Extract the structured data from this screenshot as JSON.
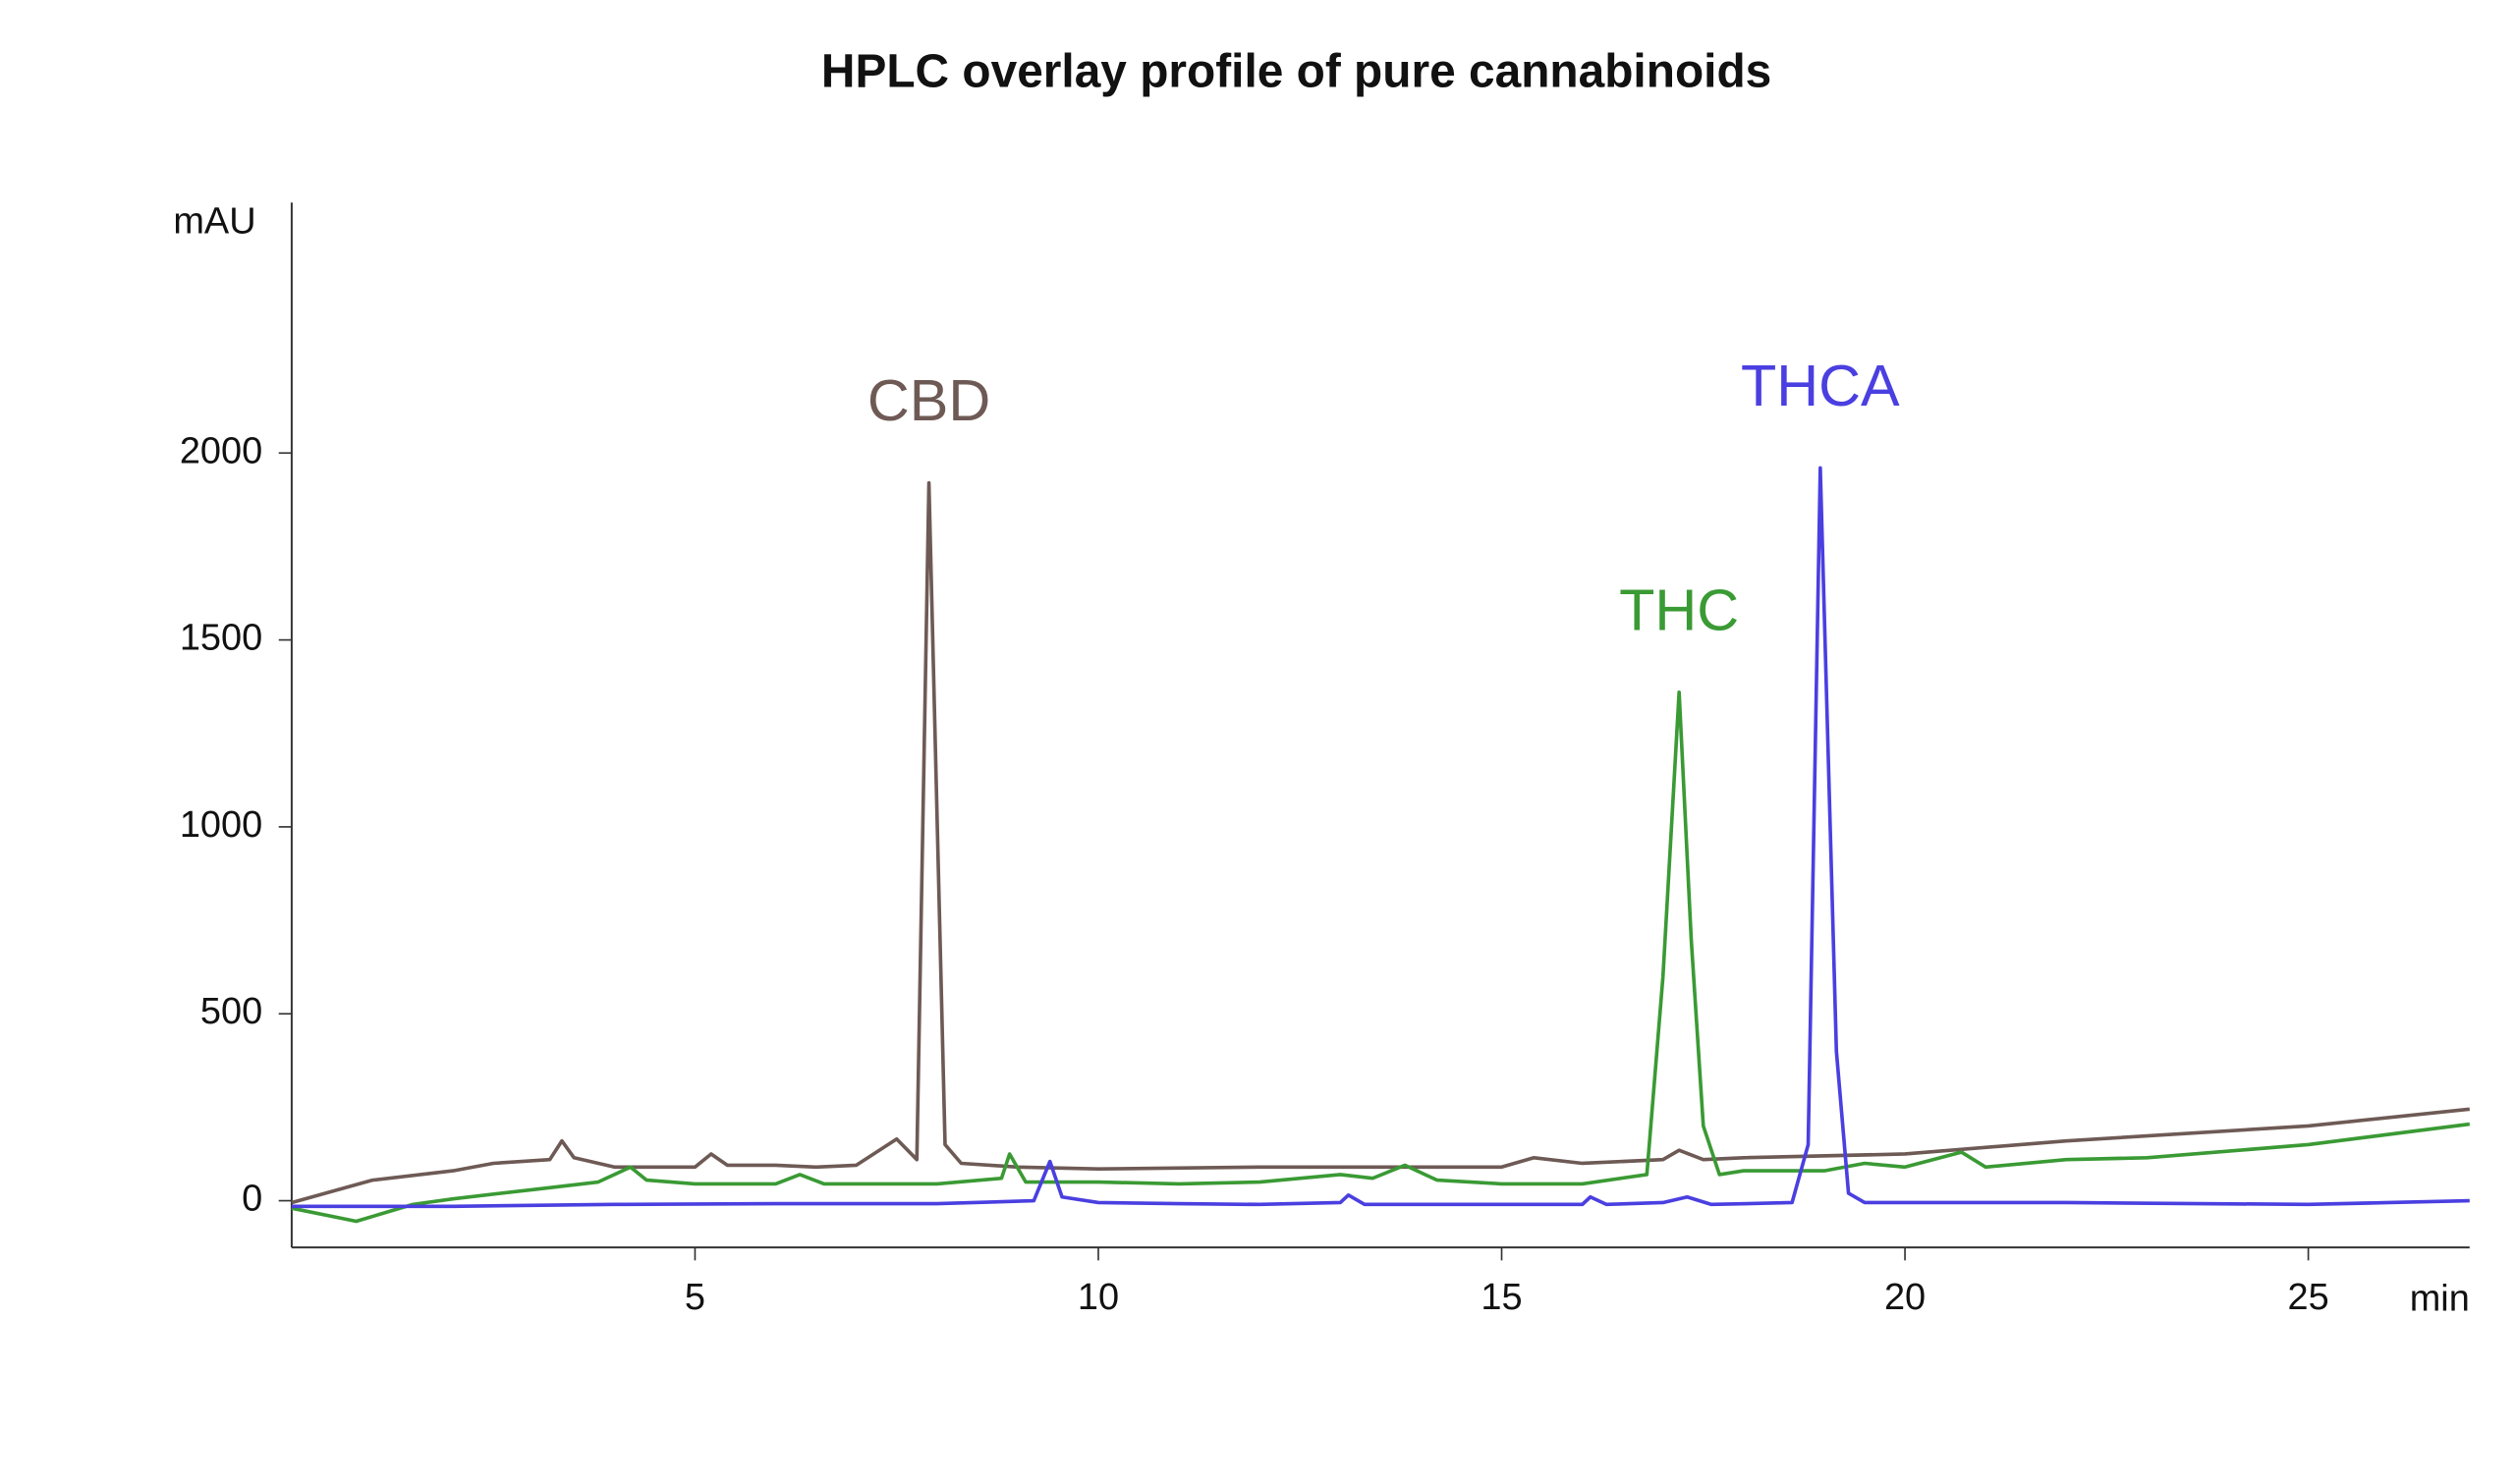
{
  "chart_data": {
    "type": "line",
    "title": "HPLC overlay profile of pure cannabinoids",
    "x_label": "min",
    "y_label": "mAU",
    "xlim": [
      0,
      27
    ],
    "ylim": [
      -125,
      2670
    ],
    "xticks": [
      5,
      10,
      15,
      20,
      25
    ],
    "yticks": [
      0,
      500,
      1000,
      1500,
      2000
    ],
    "series": [
      {
        "name": "CBD",
        "color": "#6e5a55",
        "x": [
          0,
          1,
          2,
          2.5,
          3.2,
          3.35,
          3.5,
          4,
          5,
          5.2,
          5.4,
          6,
          6.5,
          7,
          7.5,
          7.75,
          7.9,
          8.1,
          8.3,
          9,
          10,
          12,
          15,
          15.4,
          16,
          17,
          17.2,
          17.5,
          18,
          20,
          22,
          25,
          27
        ],
        "values": [
          -5,
          55,
          80,
          100,
          110,
          160,
          115,
          90,
          90,
          125,
          95,
          95,
          90,
          95,
          165,
          110,
          1920,
          150,
          100,
          90,
          85,
          90,
          90,
          115,
          100,
          110,
          135,
          110,
          115,
          125,
          160,
          200,
          245
        ]
      },
      {
        "name": "THC",
        "color": "#3a9a34",
        "x": [
          0,
          0.8,
          1.5,
          2,
          3,
          3.8,
          4.2,
          4.4,
          5,
          6,
          6.3,
          6.6,
          7,
          8,
          8.8,
          8.9,
          9.1,
          10,
          11,
          12,
          13,
          13.4,
          13.8,
          14.2,
          15,
          16,
          16.8,
          17.0,
          17.2,
          17.35,
          17.5,
          17.7,
          18,
          19,
          19.5,
          20,
          20.7,
          21,
          22,
          23,
          25,
          27
        ],
        "values": [
          -20,
          -55,
          -10,
          5,
          30,
          50,
          90,
          55,
          45,
          45,
          70,
          45,
          45,
          45,
          60,
          125,
          50,
          50,
          45,
          50,
          70,
          60,
          95,
          55,
          45,
          45,
          70,
          600,
          1360,
          700,
          200,
          70,
          80,
          80,
          100,
          90,
          130,
          90,
          110,
          115,
          150,
          205
        ]
      },
      {
        "name": "THCA",
        "color": "#4a3fe0",
        "x": [
          0,
          2,
          4,
          6,
          8,
          9.2,
          9.4,
          9.55,
          10,
          11,
          12,
          13,
          13.1,
          13.3,
          15,
          16,
          16.1,
          16.3,
          17,
          17.3,
          17.6,
          18.6,
          18.8,
          18.95,
          19.15,
          19.3,
          19.5,
          22,
          25,
          26,
          27
        ],
        "values": [
          -15,
          -15,
          -10,
          -8,
          -8,
          0,
          105,
          10,
          -5,
          -8,
          -10,
          -5,
          15,
          -10,
          -10,
          -10,
          10,
          -10,
          -5,
          10,
          -10,
          -5,
          150,
          1960,
          400,
          20,
          -5,
          -5,
          -10,
          -5,
          0
        ]
      }
    ]
  }
}
